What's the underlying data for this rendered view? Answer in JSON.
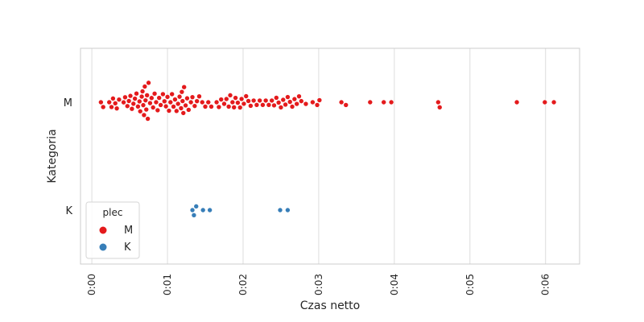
{
  "chart_data": {
    "type": "scatter",
    "subtype": "swarm",
    "title": "",
    "xlabel": "Czas netto",
    "ylabel": "Kategoria",
    "xlim": [
      -0.0015,
      0.0645
    ],
    "x_ticks": [
      0.0,
      0.01,
      0.02,
      0.03,
      0.04,
      0.05,
      0.06
    ],
    "x_tick_labels": [
      "0:00",
      "0:01",
      "0:02",
      "0:03",
      "0:04",
      "0:05",
      "0:06"
    ],
    "categories": [
      "M",
      "K"
    ],
    "grid": true,
    "legend": {
      "title": "plec",
      "position": "lower-left",
      "entries": [
        {
          "label": "M",
          "color": "#e41a1c"
        },
        {
          "label": "K",
          "color": "#377eb8"
        }
      ]
    },
    "series": [
      {
        "name": "M",
        "category": "M",
        "color": "#e41a1c",
        "values": [
          0.0012,
          0.0015,
          0.0023,
          0.0026,
          0.0028,
          0.0031,
          0.0033,
          0.0036,
          0.0042,
          0.0044,
          0.0047,
          0.0049,
          0.0051,
          0.0053,
          0.0055,
          0.0057,
          0.0059,
          0.0061,
          0.0063,
          0.0064,
          0.0066,
          0.0067,
          0.0068,
          0.0069,
          0.007,
          0.0071,
          0.0072,
          0.0073,
          0.0074,
          0.0075,
          0.0077,
          0.0079,
          0.0081,
          0.0083,
          0.0085,
          0.0087,
          0.0089,
          0.0091,
          0.0094,
          0.0096,
          0.0098,
          0.01,
          0.0102,
          0.0104,
          0.0106,
          0.0108,
          0.011,
          0.0112,
          0.0114,
          0.0116,
          0.0118,
          0.0119,
          0.012,
          0.0121,
          0.0122,
          0.0124,
          0.0126,
          0.0128,
          0.0131,
          0.0133,
          0.0136,
          0.0139,
          0.0142,
          0.0146,
          0.015,
          0.0154,
          0.0158,
          0.0165,
          0.0168,
          0.0171,
          0.0175,
          0.0178,
          0.0181,
          0.0183,
          0.0186,
          0.0188,
          0.019,
          0.0193,
          0.0196,
          0.0198,
          0.0201,
          0.0204,
          0.0207,
          0.021,
          0.0214,
          0.0218,
          0.0222,
          0.0226,
          0.023,
          0.0234,
          0.0238,
          0.0241,
          0.0244,
          0.0247,
          0.025,
          0.0253,
          0.0256,
          0.0259,
          0.0262,
          0.0265,
          0.0268,
          0.0271,
          0.0274,
          0.0277,
          0.0283,
          0.0292,
          0.0298,
          0.0301,
          0.033,
          0.0336,
          0.0368,
          0.0386,
          0.0396,
          0.0458,
          0.046,
          0.0562,
          0.0599,
          0.0611
        ]
      },
      {
        "name": "K",
        "category": "K",
        "color": "#377eb8",
        "values": [
          0.0133,
          0.0135,
          0.0138,
          0.0147,
          0.0156,
          0.0249,
          0.0259
        ]
      }
    ]
  }
}
